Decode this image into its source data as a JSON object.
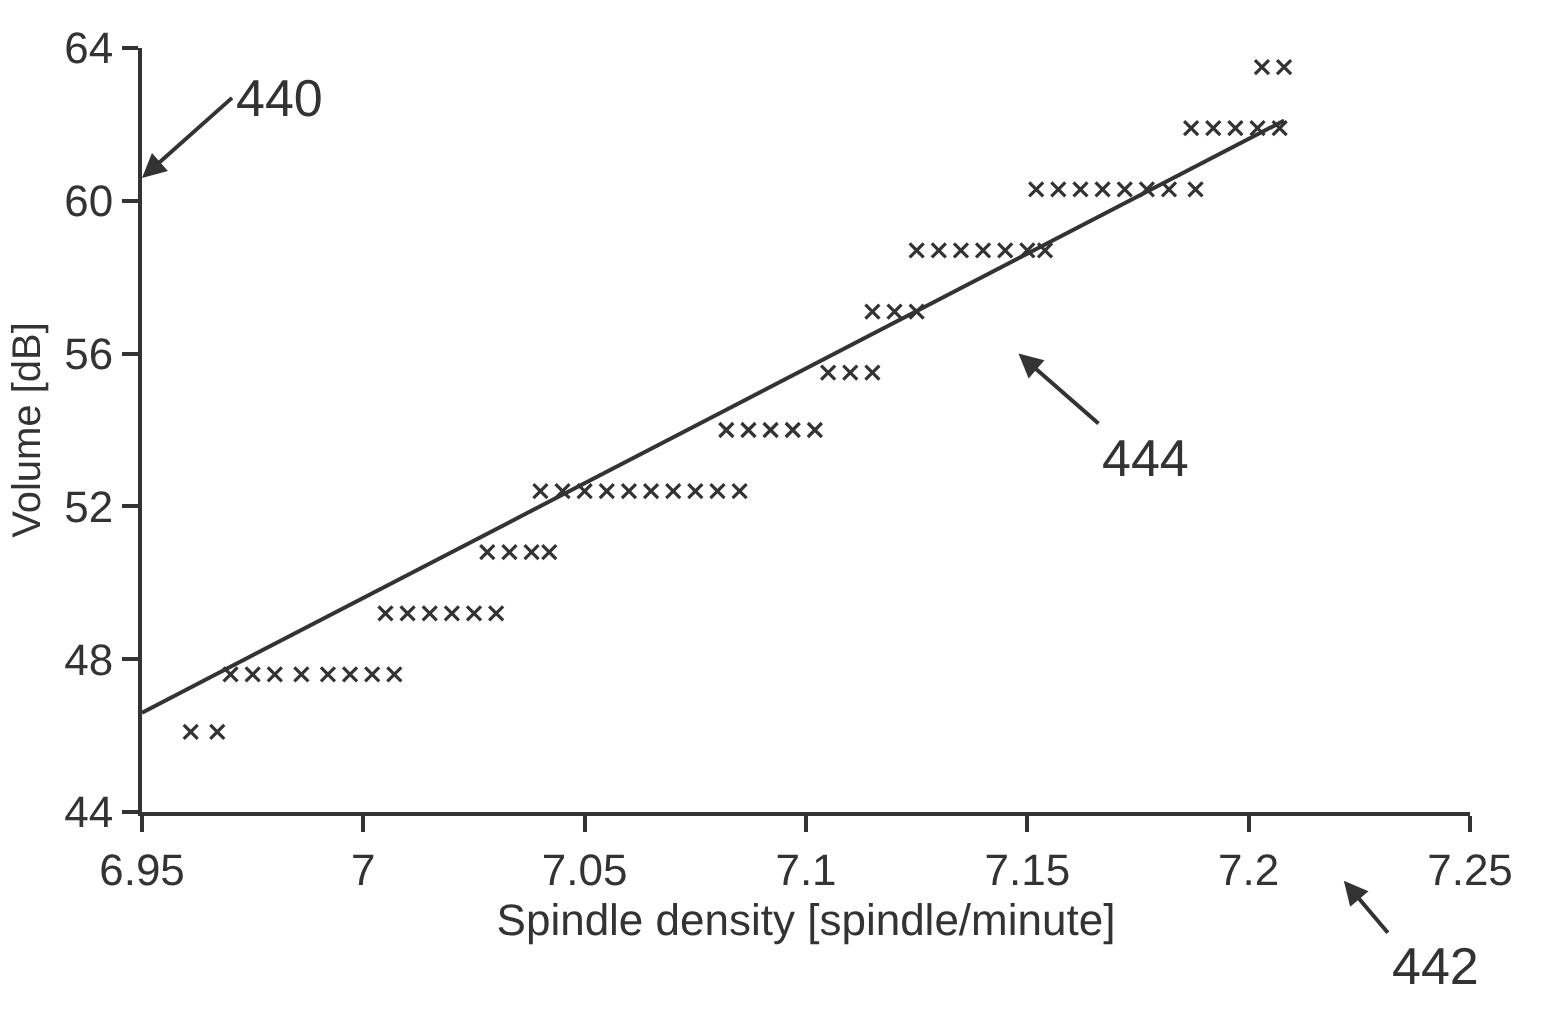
{
  "chart_data": {
    "type": "scatter",
    "xlabel": "Spindle density [spindle/minute]",
    "ylabel": "Volume [dB]",
    "xlim": [
      6.95,
      7.25
    ],
    "xticks": [
      6.95,
      7,
      7.05,
      7.1,
      7.15,
      7.2,
      7.25
    ],
    "ylim": [
      44,
      64
    ],
    "yticks": [
      44,
      48,
      52,
      56,
      60,
      64
    ],
    "legend": false,
    "series": [
      {
        "marker": "cross",
        "color": "#333333",
        "x": [
          6.961,
          6.967,
          6.97,
          6.975,
          6.98,
          6.986,
          6.992,
          6.997,
          7.002,
          7.007,
          7.005,
          7.01,
          7.015,
          7.02,
          7.025,
          7.03,
          7.028,
          7.033,
          7.038,
          7.042,
          7.04,
          7.045,
          7.05,
          7.055,
          7.06,
          7.065,
          7.07,
          7.075,
          7.08,
          7.085,
          7.082,
          7.087,
          7.092,
          7.097,
          7.102,
          7.105,
          7.11,
          7.115,
          7.115,
          7.12,
          7.125,
          7.125,
          7.13,
          7.135,
          7.14,
          7.145,
          7.15,
          7.154,
          7.152,
          7.157,
          7.162,
          7.167,
          7.172,
          7.177,
          7.182,
          7.188,
          7.187,
          7.192,
          7.197,
          7.202,
          7.207,
          7.203,
          7.208
        ],
        "values": [
          46.1,
          46.1,
          47.6,
          47.6,
          47.6,
          47.6,
          47.6,
          47.6,
          47.6,
          47.6,
          49.2,
          49.2,
          49.2,
          49.2,
          49.2,
          49.2,
          50.8,
          50.8,
          50.8,
          50.8,
          52.4,
          52.4,
          52.4,
          52.4,
          52.4,
          52.4,
          52.4,
          52.4,
          52.4,
          52.4,
          54.0,
          54.0,
          54.0,
          54.0,
          54.0,
          55.5,
          55.5,
          55.5,
          57.1,
          57.1,
          57.1,
          58.7,
          58.7,
          58.7,
          58.7,
          58.7,
          58.7,
          58.7,
          60.3,
          60.3,
          60.3,
          60.3,
          60.3,
          60.3,
          60.3,
          60.3,
          61.9,
          61.9,
          61.9,
          61.9,
          61.9,
          63.5,
          63.5
        ]
      },
      {
        "type": "line",
        "marker": "none",
        "line_style": "solid",
        "color": "#333333",
        "x": [
          6.95,
          7.208
        ],
        "values": [
          46.6,
          62.1
        ]
      }
    ],
    "annotations": [
      "440",
      "444",
      "442"
    ]
  }
}
